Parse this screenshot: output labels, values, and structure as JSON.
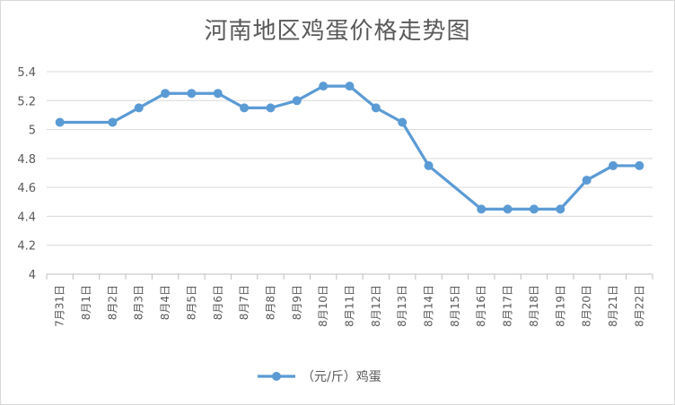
{
  "chart_data": {
    "type": "line",
    "title": "河南地区鸡蛋价格走势图",
    "xlabel": "",
    "ylabel": "",
    "categories": [
      "7月31日",
      "8月1日",
      "8月2日",
      "8月3日",
      "8月4日",
      "8月5日",
      "8月6日",
      "8月7日",
      "8月8日",
      "8月9日",
      "8月10日",
      "8月11日",
      "8月12日",
      "8月13日",
      "8月14日",
      "8月15日",
      "8月16日",
      "8月17日",
      "8月18日",
      "8月19日",
      "8月20日",
      "8月21日",
      "8月22日"
    ],
    "series": [
      {
        "name": "（元/斤）鸡蛋",
        "color": "#5b9bd5",
        "values": [
          5.05,
          null,
          5.05,
          5.15,
          5.25,
          5.25,
          5.25,
          5.15,
          5.15,
          5.2,
          5.3,
          5.3,
          5.15,
          5.05,
          4.75,
          null,
          4.45,
          4.45,
          4.45,
          4.45,
          4.65,
          4.75,
          4.75
        ]
      }
    ],
    "ylim": [
      4,
      5.4
    ],
    "yticks": [
      "4",
      "4.2",
      "4.4",
      "4.6",
      "4.8",
      "5",
      "5.2",
      "5.4"
    ],
    "grid": true,
    "legend": "bottom",
    "span_gaps": true
  }
}
